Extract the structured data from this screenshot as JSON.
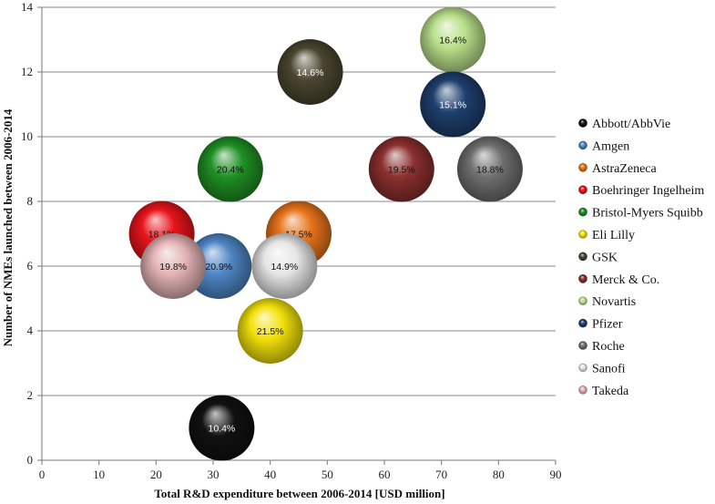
{
  "chart_data": {
    "type": "bubble",
    "title": "",
    "xlabel": "Total R&D expenditure between 2006-2014 [USD million]",
    "ylabel": "Number of NMEs launched between 2006-2014",
    "xlim": [
      0,
      90
    ],
    "ylim": [
      0,
      14
    ],
    "xticks": [
      "0",
      "10",
      "20",
      "30",
      "40",
      "50",
      "60",
      "70",
      "80",
      "90"
    ],
    "yticks": [
      "0",
      "2",
      "4",
      "6",
      "8",
      "10",
      "12",
      "14"
    ],
    "grid": "horizontal",
    "legend_position": "right",
    "series": [
      {
        "name": "Abbott/AbbVie",
        "x": 31.5,
        "y": 1,
        "label": "10.4%",
        "color": "#111111",
        "text_color": "#ffffff"
      },
      {
        "name": "Amgen",
        "x": 31,
        "y": 6,
        "label": "20.9%",
        "color": "#4f86c6",
        "text_color": "#111111"
      },
      {
        "name": "AstraZeneca",
        "x": 45,
        "y": 7,
        "label": "17.5%",
        "color": "#e8741b",
        "text_color": "#111111"
      },
      {
        "name": "Boehringer Ingelheim",
        "x": 21,
        "y": 7,
        "label": "18.1%",
        "color": "#e8141b",
        "text_color": "#111111"
      },
      {
        "name": "Bristol-Myers Squibb",
        "x": 33,
        "y": 9,
        "label": "20.4%",
        "color": "#1f8f24",
        "text_color": "#111111"
      },
      {
        "name": "Eli Lilly",
        "x": 40,
        "y": 4,
        "label": "21.5%",
        "color": "#f2e10a",
        "text_color": "#111111"
      },
      {
        "name": "GSK",
        "x": 47,
        "y": 12,
        "label": "14.6%",
        "color": "#4a4630",
        "text_color": "#ffffff"
      },
      {
        "name": "Merck & Co.",
        "x": 63,
        "y": 9,
        "label": "19.5%",
        "color": "#8c2f2f",
        "text_color": "#111111"
      },
      {
        "name": "Novartis",
        "x": 72,
        "y": 13,
        "label": "16.4%",
        "color": "#b9e08a",
        "text_color": "#111111"
      },
      {
        "name": "Pfizer",
        "x": 72,
        "y": 11,
        "label": "15.1%",
        "color": "#1f3f6e",
        "text_color": "#ffffff"
      },
      {
        "name": "Roche",
        "x": 78.5,
        "y": 9,
        "label": "18.8%",
        "color": "#6f6f6f",
        "text_color": "#111111"
      },
      {
        "name": "Sanofi",
        "x": 42.5,
        "y": 6,
        "label": "14.9%",
        "color": "#e6e6e6",
        "text_color": "#111111"
      },
      {
        "name": "Takeda",
        "x": 23,
        "y": 6,
        "label": "19.8%",
        "color": "#e4b3b5",
        "text_color": "#111111"
      }
    ]
  }
}
